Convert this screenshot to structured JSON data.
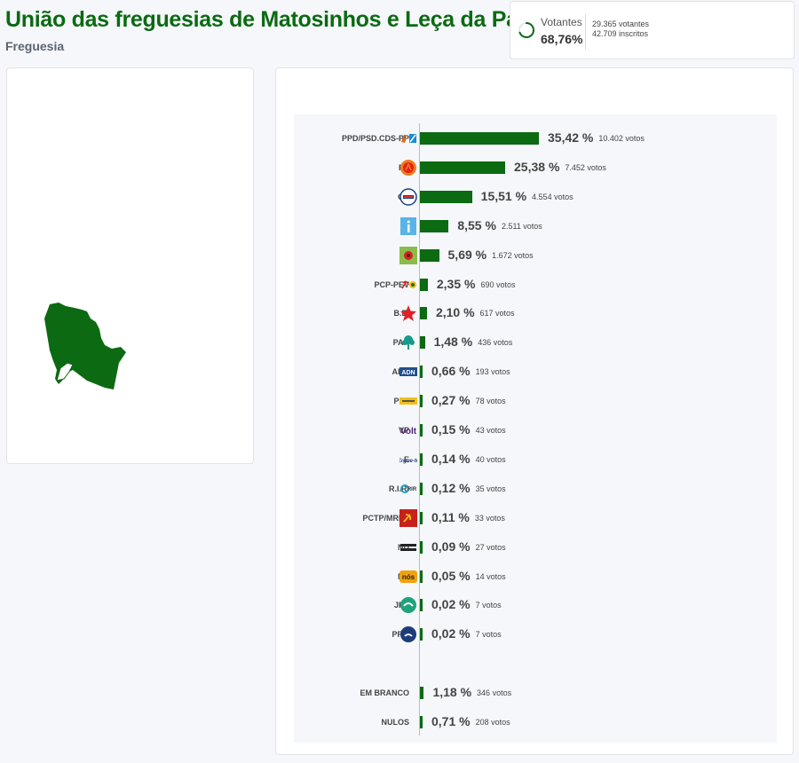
{
  "header": {
    "title": "União das freguesias de Matosinhos e Leça da Palmeira",
    "subtitle": "Freguesia"
  },
  "stats": {
    "votantes_label": "Votantes",
    "votantes_pct": "68,76%",
    "votantes_fraction": 0.6876,
    "votantes_text": "29.365 votantes",
    "inscritos_text": "42.709 inscritos"
  },
  "colors": {
    "bar": "#0b6a12",
    "title": "#0b6a12"
  },
  "chart_data": {
    "type": "bar",
    "orientation": "horizontal",
    "categories": [
      "PPD/PSD.CDS-PP",
      "PS",
      "CH",
      "IL",
      "L",
      "PCP-PEV",
      "B.E.",
      "PAN",
      "ADN",
      "PLS",
      "VP",
      "E",
      "R.I.R.",
      "PCTP/MRPP",
      "ND",
      "NC",
      "JPP",
      "PPM",
      "EM BRANCO",
      "NULOS"
    ],
    "values": [
      35.42,
      25.38,
      15.51,
      8.55,
      5.69,
      2.35,
      2.1,
      1.48,
      0.66,
      0.27,
      0.15,
      0.14,
      0.12,
      0.11,
      0.09,
      0.05,
      0.02,
      0.02,
      1.18,
      0.71
    ],
    "rows": [
      {
        "label": "PPD/PSD.CDS-PP",
        "pct": "35,42 %",
        "votes": "10.402 votos",
        "value": 35.42,
        "logo": "psd-cds-logo-icon"
      },
      {
        "label": "PS",
        "pct": "25,38 %",
        "votes": "7.452 votos",
        "value": 25.38,
        "logo": "ps-logo-icon"
      },
      {
        "label": "CH",
        "pct": "15,51 %",
        "votes": "4.554 votos",
        "value": 15.51,
        "logo": "chega-logo-icon"
      },
      {
        "label": "IL",
        "pct": "8,55 %",
        "votes": "2.511 votos",
        "value": 8.55,
        "logo": "il-logo-icon"
      },
      {
        "label": "L",
        "pct": "5,69 %",
        "votes": "1.672 votos",
        "value": 5.69,
        "logo": "livre-logo-icon"
      },
      {
        "label": "PCP-PEV",
        "pct": "2,35 %",
        "votes": "690 votos",
        "value": 2.35,
        "logo": "pcp-pev-logo-icon"
      },
      {
        "label": "B.E.",
        "pct": "2,10 %",
        "votes": "617 votos",
        "value": 2.1,
        "logo": "be-star-logo-icon"
      },
      {
        "label": "PAN",
        "pct": "1,48 %",
        "votes": "436 votos",
        "value": 1.48,
        "logo": "pan-tree-logo-icon"
      },
      {
        "label": "ADN",
        "pct": "0,66 %",
        "votes": "193 votos",
        "value": 0.66,
        "logo": "adn-logo-icon"
      },
      {
        "label": "PLS",
        "pct": "0,27 %",
        "votes": "78 votos",
        "value": 0.27,
        "logo": "pls-logo-icon"
      },
      {
        "label": "VP",
        "pct": "0,15 %",
        "votes": "43 votos",
        "value": 0.15,
        "logo": "volt-logo-icon"
      },
      {
        "label": "E",
        "pct": "0,14 %",
        "votes": "40 votos",
        "value": 0.14,
        "logo": "ergue-te-logo-icon"
      },
      {
        "label": "R.I.R.",
        "pct": "0,12 %",
        "votes": "35 votos",
        "value": 0.12,
        "logo": "rir-logo-icon"
      },
      {
        "label": "PCTP/MRPP",
        "pct": "0,11 %",
        "votes": "33 votos",
        "value": 0.11,
        "logo": "pctp-logo-icon"
      },
      {
        "label": "ND",
        "pct": "0,09 %",
        "votes": "27 votos",
        "value": 0.09,
        "logo": "nova-direita-logo-icon"
      },
      {
        "label": "NC",
        "pct": "0,05 %",
        "votes": "14 votos",
        "value": 0.05,
        "logo": "nos-cidadaos-logo-icon"
      },
      {
        "label": "JPP",
        "pct": "0,02 %",
        "votes": "7 votos",
        "value": 0.02,
        "logo": "jpp-logo-icon"
      },
      {
        "label": "PPM",
        "pct": "0,02 %",
        "votes": "7 votos",
        "value": 0.02,
        "logo": "ppm-logo-icon"
      },
      {
        "label": "EM BRANCO",
        "pct": "1,18 %",
        "votes": "346 votos",
        "value": 1.18,
        "logo": ""
      },
      {
        "label": "NULOS",
        "pct": "0,71 %",
        "votes": "208 votos",
        "value": 0.71,
        "logo": ""
      }
    ],
    "title": "",
    "xlabel": "",
    "ylabel": "",
    "grid": false
  }
}
